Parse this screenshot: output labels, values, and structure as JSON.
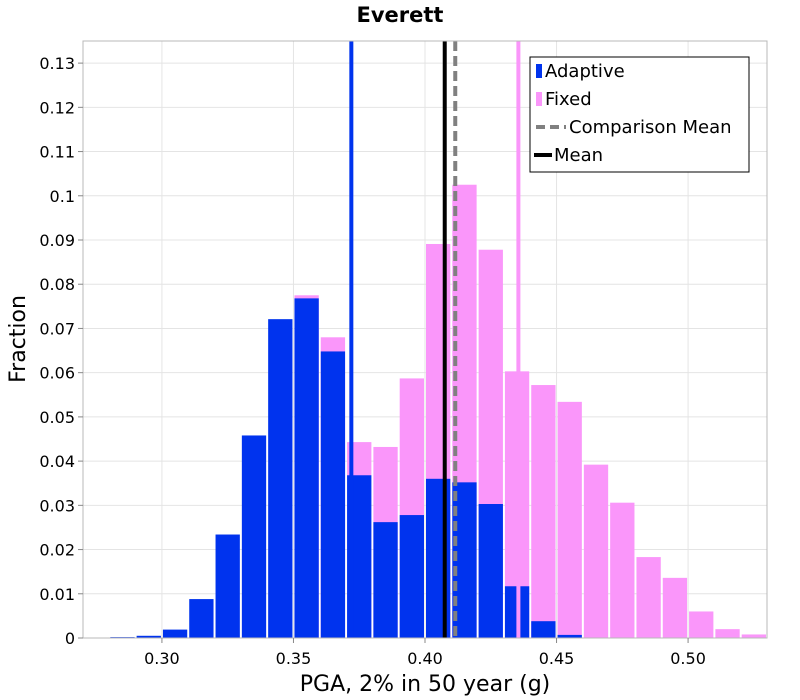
{
  "chart_data": {
    "type": "bar",
    "title": "Everett",
    "xlabel": "PGA, 2% in 50 year (g)",
    "ylabel": "Fraction",
    "xlim": [
      0.27,
      0.53
    ],
    "ylim": [
      0,
      0.135
    ],
    "bin_width": 0.01,
    "x_ticks": [
      {
        "value": 0.3,
        "label": "0.30"
      },
      {
        "value": 0.35,
        "label": "0.35"
      },
      {
        "value": 0.4,
        "label": "0.40"
      },
      {
        "value": 0.45,
        "label": "0.45"
      },
      {
        "value": 0.5,
        "label": "0.50"
      }
    ],
    "y_ticks": [
      {
        "value": 0,
        "label": "0"
      },
      {
        "value": 0.01,
        "label": "0.01"
      },
      {
        "value": 0.02,
        "label": "0.02"
      },
      {
        "value": 0.03,
        "label": "0.03"
      },
      {
        "value": 0.04,
        "label": "0.04"
      },
      {
        "value": 0.05,
        "label": "0.05"
      },
      {
        "value": 0.06,
        "label": "0.06"
      },
      {
        "value": 0.07,
        "label": "0.07"
      },
      {
        "value": 0.08,
        "label": "0.08"
      },
      {
        "value": 0.09,
        "label": "0.09"
      },
      {
        "value": 0.1,
        "label": "0.1"
      },
      {
        "value": 0.11,
        "label": "0.11"
      },
      {
        "value": 0.12,
        "label": "0.12"
      },
      {
        "value": 0.13,
        "label": "0.13"
      }
    ],
    "series": [
      {
        "name": "Fixed",
        "color": "#fa96fa",
        "bin_centers": [
          0.355,
          0.365,
          0.375,
          0.385,
          0.395,
          0.405,
          0.415,
          0.425,
          0.435,
          0.445,
          0.455,
          0.465,
          0.475,
          0.485,
          0.495,
          0.505,
          0.515,
          0.525
        ],
        "values": [
          0.0775,
          0.068,
          0.0443,
          0.0432,
          0.0587,
          0.0891,
          0.1025,
          0.0878,
          0.0603,
          0.0572,
          0.0534,
          0.0392,
          0.0306,
          0.0183,
          0.0136,
          0.006,
          0.002,
          0.0008
        ]
      },
      {
        "name": "Adaptive",
        "color": "#0033ee",
        "bin_centers": [
          0.285,
          0.295,
          0.305,
          0.315,
          0.325,
          0.335,
          0.345,
          0.355,
          0.365,
          0.375,
          0.385,
          0.395,
          0.405,
          0.415,
          0.425,
          0.435,
          0.445,
          0.455
        ],
        "values": [
          0.0002,
          0.0005,
          0.0019,
          0.0088,
          0.0234,
          0.0458,
          0.0721,
          0.0768,
          0.0648,
          0.0368,
          0.0262,
          0.0278,
          0.036,
          0.0352,
          0.0303,
          0.0117,
          0.0038,
          0.0007
        ]
      }
    ],
    "vertical_lines": [
      {
        "name": "Adaptive mean line",
        "x": 0.372,
        "color": "#0033ee",
        "style": "solid"
      },
      {
        "name": "Fixed mean line",
        "x": 0.4355,
        "color": "#fa96fa",
        "style": "solid"
      },
      {
        "name": "Mean",
        "x": 0.4075,
        "color": "#000000",
        "style": "solid"
      },
      {
        "name": "Comparison Mean",
        "x": 0.4115,
        "color": "#808080",
        "style": "dashed"
      }
    ],
    "grid": true,
    "legend": {
      "placement": "top-right",
      "entries": [
        {
          "label": "Adaptive",
          "marker": "bar",
          "color": "#0033ee"
        },
        {
          "label": "Fixed",
          "marker": "bar",
          "color": "#fa96fa"
        },
        {
          "label": "Comparison Mean",
          "marker": "dashed-line",
          "color": "#808080"
        },
        {
          "label": "Mean",
          "marker": "solid-line",
          "color": "#000000"
        }
      ]
    }
  }
}
